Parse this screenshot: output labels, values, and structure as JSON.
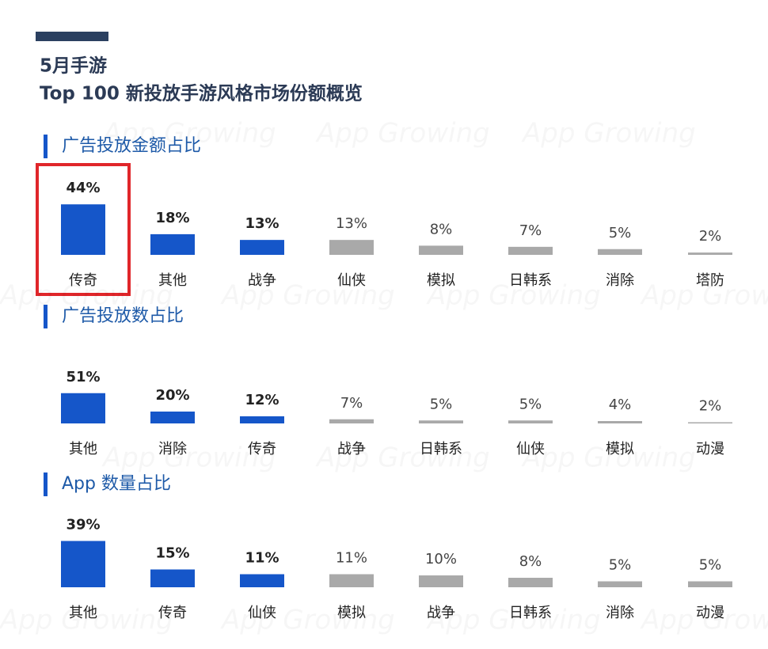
{
  "header": {
    "title_line1": "5月手游",
    "title_line2": "Top 100 新投放手游风格市场份额概览"
  },
  "watermark": "App Growing",
  "chart_data": [
    {
      "type": "bar",
      "title": "广告投放金额占比",
      "categories": [
        "传奇",
        "其他",
        "战争",
        "仙侠",
        "模拟",
        "日韩系",
        "消除",
        "塔防"
      ],
      "values": [
        44,
        18,
        13,
        13,
        8,
        7,
        5,
        2
      ],
      "value_labels": [
        "44%",
        "18%",
        "13%",
        "13%",
        "8%",
        "7%",
        "5%",
        "2%"
      ],
      "colors": [
        "#1556c9",
        "#1556c9",
        "#1556c9",
        "#a9a9a9",
        "#a9a9a9",
        "#a9a9a9",
        "#a9a9a9",
        "#a9a9a9"
      ]
    },
    {
      "type": "bar",
      "title": "广告投放数占比",
      "categories": [
        "其他",
        "消除",
        "传奇",
        "战争",
        "日韩系",
        "仙侠",
        "模拟",
        "动漫"
      ],
      "values": [
        51,
        20,
        12,
        7,
        5,
        5,
        4,
        2
      ],
      "value_labels": [
        "51%",
        "20%",
        "12%",
        "7%",
        "5%",
        "5%",
        "4%",
        "2%"
      ],
      "colors": [
        "#1556c9",
        "#1556c9",
        "#1556c9",
        "#a9a9a9",
        "#a9a9a9",
        "#a9a9a9",
        "#a9a9a9",
        "#a9a9a9"
      ]
    },
    {
      "type": "bar",
      "title": "App 数量占比",
      "categories": [
        "其他",
        "传奇",
        "仙侠",
        "模拟",
        "战争",
        "日韩系",
        "消除",
        "动漫"
      ],
      "values": [
        39,
        15,
        11,
        11,
        10,
        8,
        5,
        5
      ],
      "value_labels": [
        "39%",
        "15%",
        "11%",
        "11%",
        "10%",
        "8%",
        "5%",
        "5%"
      ],
      "colors": [
        "#1556c9",
        "#1556c9",
        "#1556c9",
        "#a9a9a9",
        "#a9a9a9",
        "#a9a9a9",
        "#a9a9a9",
        "#a9a9a9"
      ]
    }
  ]
}
